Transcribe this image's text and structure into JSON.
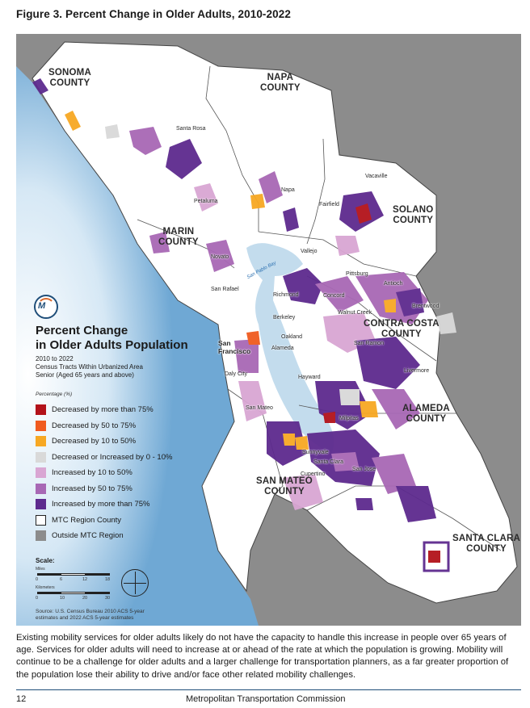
{
  "figure_title": "Figure 3. Percent Change in Older Adults, 2010-2022",
  "counties": [
    {
      "key": "sonoma",
      "label": "SONOMA\nCOUNTY"
    },
    {
      "key": "napa",
      "label": "NAPA\nCOUNTY"
    },
    {
      "key": "solano",
      "label": "SOLANO\nCOUNTY"
    },
    {
      "key": "marin",
      "label": "MARIN\nCOUNTY"
    },
    {
      "key": "contra_costa",
      "label": "CONTRA COSTA\nCOUNTY"
    },
    {
      "key": "alameda",
      "label": "ALAMEDA\nCOUNTY"
    },
    {
      "key": "san_mateo",
      "label": "SAN MATEO\nCOUNTY"
    },
    {
      "key": "santa_clara",
      "label": "SANTA CLARA\nCOUNTY"
    }
  ],
  "cities": [
    "Santa Rosa",
    "Napa",
    "Vacaville",
    "Fairfield",
    "Petaluma",
    "Novato",
    "Vallejo",
    "San Rafael",
    "Pittsburg",
    "Antioch",
    "Brentwood",
    "Concord",
    "Walnut Creek",
    "Richmond",
    "Berkeley",
    "Oakland",
    "Alameda",
    "San Ramon",
    "San Francisco",
    "Daly City",
    "Hayward",
    "Livermore",
    "San Mateo",
    "Milpitas",
    "Sunnyvale",
    "Santa Clara",
    "San Jose",
    "Cupertino"
  ],
  "bay_label": "San Pablo Bay",
  "legend": {
    "title_line1": "Percent Change",
    "title_line2": "in Older Adults Population",
    "years": "2010 to 2022",
    "subtitle1": "Census Tracts Within Urbanized Area",
    "subtitle2": "Senior (Aged 65 years and above)",
    "caption": "Percentage (%)",
    "items": [
      {
        "label": "Decreased by more than 75%",
        "color": "#b3121a",
        "outline": false
      },
      {
        "label": "Decreased by 50 to 75%",
        "color": "#f05a1e",
        "outline": false
      },
      {
        "label": "Decreased by 10 to 50%",
        "color": "#f7a823",
        "outline": false
      },
      {
        "label": "Decreased or Increased by 0 - 10%",
        "color": "#d9d9d9",
        "outline": false
      },
      {
        "label": "Increased by 10 to 50%",
        "color": "#d9a6d3",
        "outline": false
      },
      {
        "label": "Increased by 50 to 75%",
        "color": "#a868b5",
        "outline": false
      },
      {
        "label": "Increased by more than 75%",
        "color": "#5d2a8e",
        "outline": false
      },
      {
        "label": "MTC Region County",
        "color": "#ffffff",
        "outline": true
      },
      {
        "label": "Outside MTC Region",
        "color": "#8c8c8c",
        "outline": false
      }
    ]
  },
  "scale": {
    "title": "Scale:",
    "miles_label": "Miles",
    "miles_ticks": [
      "0",
      "6",
      "12",
      "18"
    ],
    "km_label": "Kilometers",
    "km_ticks": [
      "0",
      "10",
      "20",
      "30"
    ]
  },
  "source": "Source:  U.S. Census Bureau 2010 ACS 5-year estimates and 2022 ACS 5-year estimates",
  "body_text": "Existing mobility services for older adults likely do not have the capacity to handle this increase in people over 65 years of age. Services for older adults will need to increase at or ahead of the rate at which the population is growing. Mobility will continue to be a challenge for older adults and a larger challenge for transportation planners, as a far greater proportion of the population lose their ability to drive and/or face other related mobility challenges.",
  "footer": {
    "page": "12",
    "org": "Metropolitan Transportation Commission"
  }
}
